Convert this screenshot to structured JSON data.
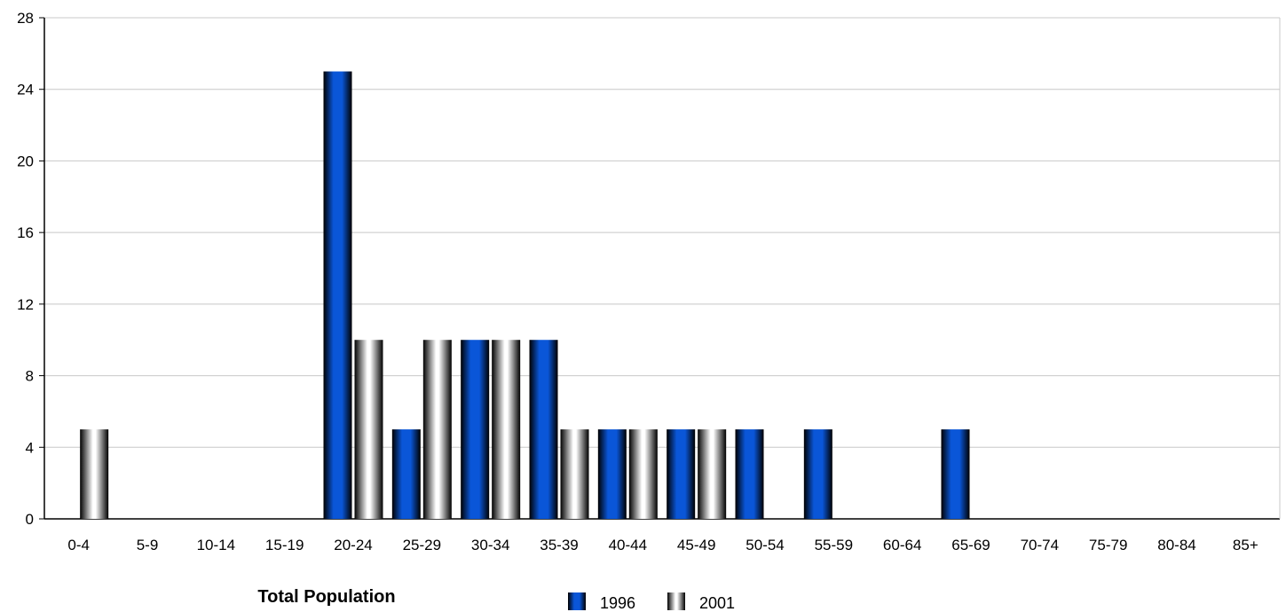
{
  "chart_data": {
    "type": "bar",
    "title": "Total Population",
    "xlabel": "",
    "ylabel": "",
    "ylim": [
      0,
      28
    ],
    "yticks": [
      0,
      4,
      8,
      12,
      16,
      20,
      24,
      28
    ],
    "grid": true,
    "legend_position": "bottom",
    "categories": [
      "0-4",
      "5-9",
      "10-14",
      "15-19",
      "20-24",
      "25-29",
      "30-34",
      "35-39",
      "40-44",
      "45-49",
      "50-54",
      "55-59",
      "60-64",
      "65-69",
      "70-74",
      "75-79",
      "80-84",
      "85+"
    ],
    "series": [
      {
        "name": "1996",
        "color": "#0a56d8",
        "values": [
          0,
          0,
          0,
          0,
          25,
          5,
          10,
          10,
          5,
          5,
          5,
          5,
          0,
          5,
          0,
          0,
          0,
          0
        ]
      },
      {
        "name": "2001",
        "color": "#d9d9d9",
        "values": [
          5,
          0,
          0,
          0,
          10,
          10,
          10,
          5,
          5,
          5,
          0,
          0,
          0,
          0,
          0,
          0,
          0,
          0
        ]
      }
    ]
  }
}
